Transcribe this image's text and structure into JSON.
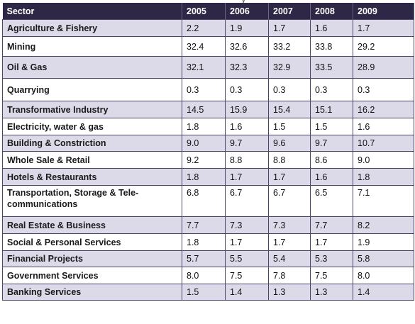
{
  "table": {
    "headers": [
      "Sector",
      "2005",
      "2006",
      "2007",
      "2008",
      "2009"
    ],
    "rows": [
      {
        "sector": "Agriculture & Fishery",
        "values": [
          "2.2",
          "1.9",
          "1.7",
          "1.6",
          "1.7"
        ]
      },
      {
        "sector": "Mining",
        "values": [
          "32.4",
          "32.6",
          "33.2",
          "33.8",
          "29.2"
        ]
      },
      {
        "sector": "Oil & Gas",
        "values": [
          "32.1",
          "32.3",
          "32.9",
          "33.5",
          "28.9"
        ]
      },
      {
        "sector": "Quarrying",
        "values": [
          "0.3",
          "0.3",
          "0.3",
          "0.3",
          "0.3"
        ]
      },
      {
        "sector": "Transformative Industry",
        "values": [
          "14.5",
          "15.9",
          "15.4",
          "15.1",
          "16.2"
        ]
      },
      {
        "sector": "Electricity, water & gas",
        "values": [
          "1.8",
          "1.6",
          "1.5",
          "1.5",
          "1.6"
        ]
      },
      {
        "sector": "Building & Constriction",
        "values": [
          "9.0",
          "9.7",
          "9.6",
          "9.7",
          "10.7"
        ]
      },
      {
        "sector": "Whole Sale & Retail",
        "values": [
          "9.2",
          "8.8",
          "8.8",
          "8.6",
          "9.0"
        ]
      },
      {
        "sector": "Hotels & Restaurants",
        "values": [
          "1.8",
          "1.7",
          "1.7",
          "1.6",
          "1.8"
        ]
      },
      {
        "sector": "Transportation, Storage & Tele-communications",
        "values": [
          "6.8",
          "6.7",
          "6.7",
          "6.5",
          "7.1"
        ]
      },
      {
        "sector": "Real Estate & Business",
        "values": [
          "7.7",
          "7.3",
          "7.3",
          "7.7",
          "8.2"
        ]
      },
      {
        "sector": "Social & Personal Services",
        "values": [
          "1.8",
          "1.7",
          "1.7",
          "1.7",
          "1.9"
        ]
      },
      {
        "sector": "Financial Projects",
        "values": [
          "5.7",
          "5.5",
          "5.4",
          "5.3",
          "5.8"
        ]
      },
      {
        "sector": "Government Services",
        "values": [
          "8.0",
          "7.5",
          "7.8",
          "7.5",
          "8.0"
        ]
      },
      {
        "sector": "Banking Services",
        "values": [
          "1.5",
          "1.4",
          "1.3",
          "1.3",
          "1.4"
        ]
      }
    ]
  },
  "colors": {
    "header_bg": "#2e2745",
    "header_text": "#ffffff",
    "shaded_row": "#dcd9e8",
    "plain_row": "#ffffff",
    "border": "#4a4466"
  }
}
